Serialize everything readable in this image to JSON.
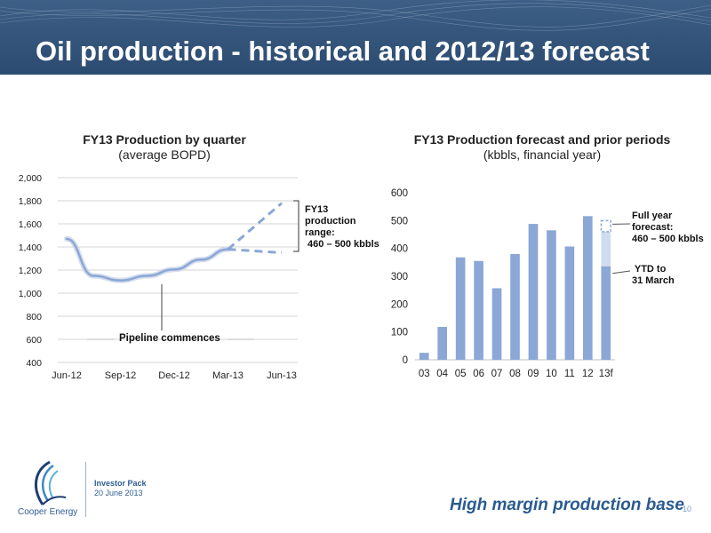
{
  "slide": {
    "title": "Oil production - historical and 2012/13 forecast",
    "tagline": "High margin production base",
    "page_number": "10",
    "footer": {
      "investor_pack": "Investor Pack",
      "date": "20 June 2013",
      "brand": "Cooper Energy"
    },
    "colors": {
      "header": "#2f4f74",
      "series": "#8aa7d6",
      "tagline": "#2a5b91"
    }
  },
  "chart_data": [
    {
      "type": "line",
      "title": "FY13 Production by quarter",
      "subtitle": "(average BOPD)",
      "categories": [
        "Jun-12",
        "Sep-12",
        "Dec-12",
        "Mar-13",
        "Jun-13"
      ],
      "ylim": [
        400,
        2000
      ],
      "yticks": [
        "400",
        "600",
        "800",
        "1,000",
        "1,200",
        "1,400",
        "1,600",
        "1,800",
        "2,000"
      ],
      "grid": true,
      "series": [
        {
          "style": "solid",
          "points": [
            [
              0,
              1470
            ],
            [
              0.5,
              1150
            ],
            [
              1,
              1110
            ],
            [
              1.5,
              1150
            ],
            [
              2,
              1205
            ],
            [
              2.5,
              1290
            ],
            [
              3,
              1380
            ]
          ]
        },
        {
          "style": "dashed",
          "points": [
            [
              3,
              1380
            ],
            [
              4,
              1780
            ]
          ]
        },
        {
          "style": "dashed",
          "points": [
            [
              3,
              1380
            ],
            [
              4,
              1350
            ]
          ]
        }
      ],
      "annotations": {
        "pipeline": "Pipeline commences",
        "range": "FY13\nproduction\nrange:\n 460 – 500 kbbls"
      }
    },
    {
      "type": "bar",
      "title": "FY13 Production forecast  and prior periods",
      "subtitle": "(kbbls, financial year)",
      "categories": [
        "03",
        "04",
        "05",
        "06",
        "07",
        "08",
        "09",
        "10",
        "11",
        "12",
        "13f"
      ],
      "values": [
        25,
        118,
        368,
        355,
        257,
        380,
        488,
        465,
        407,
        516,
        336
      ],
      "forecast": {
        "category": "13f",
        "ytd": 336,
        "low": 460,
        "high": 500
      },
      "ylim": [
        0,
        600
      ],
      "yticks": [
        "0",
        "100",
        "200",
        "300",
        "400",
        "500",
        "600"
      ],
      "grid": false,
      "annotations": {
        "full_year": "Full year\nforecast:\n460 – 500 kbbls",
        "ytd": " YTD to\n31 March"
      }
    }
  ]
}
